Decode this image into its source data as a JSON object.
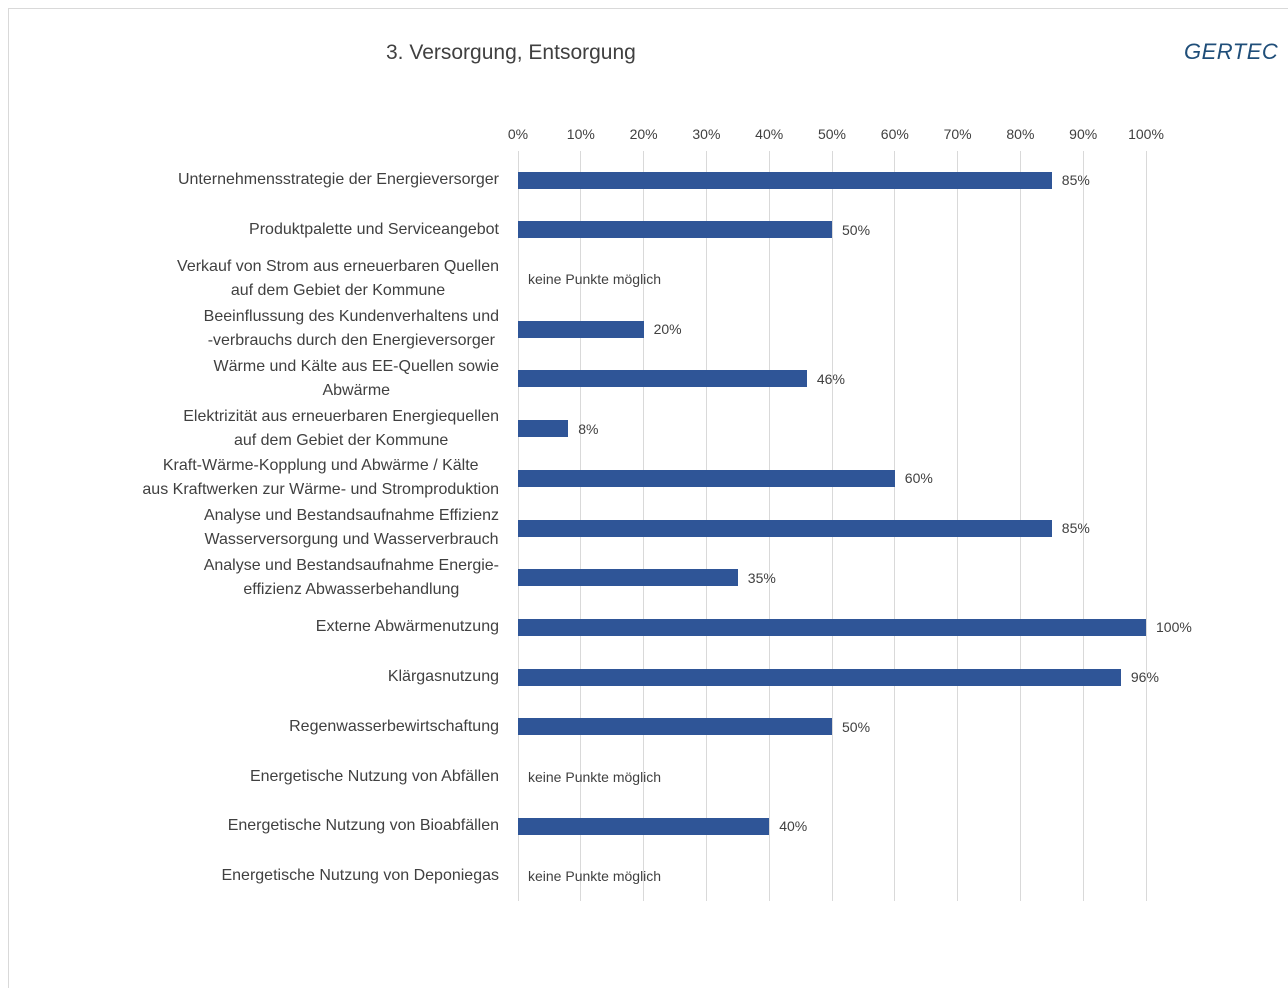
{
  "chart_data": {
    "type": "barh",
    "title": "3. Versorgung, Entsorgung",
    "logo": "GERTEC",
    "categories": [
      "Unternehmensstrategie der Energieversorger",
      "Produktpalette und Serviceangebot",
      "Verkauf von Strom aus erneuerbaren Quellen\nauf dem Gebiet der Kommune",
      "Beeinflussung des Kundenverhaltens und\n-verbrauchs durch den Energieversorger",
      "Wärme und Kälte aus EE-Quellen sowie\nAbwärme",
      "Elektrizität aus erneuerbaren Energiequellen\nauf dem Gebiet der Kommune",
      "Kraft-Wärme-Kopplung und Abwärme / Kälte\naus Kraftwerken zur Wärme- und Stromproduktion",
      "Analyse und Bestandsaufnahme Effizienz\nWasserversorgung und Wasserverbrauch",
      "Analyse und Bestandsaufnahme Energie-\neffizienz Abwasserbehandlung",
      "Externe Abwärmenutzung",
      "Klärgasnutzung",
      "Regenwasserbewirtschaftung",
      "Energetische Nutzung von Abfällen",
      "Energetische Nutzung von Bioabfällen",
      "Energetische Nutzung von Deponiegas"
    ],
    "values": [
      85,
      50,
      null,
      20,
      46,
      8,
      60,
      85,
      35,
      100,
      96,
      50,
      null,
      40,
      null
    ],
    "value_labels": [
      "85%",
      "50%",
      "keine Punkte möglich",
      "20%",
      "46%",
      "8%",
      "60%",
      "85%",
      "35%",
      "100%",
      "96%",
      "50%",
      "keine Punkte möglich",
      "40%",
      "keine Punkte möglich"
    ],
    "color": "#2f5597",
    "xlim": [
      0,
      100
    ],
    "xticks": [
      {
        "value": 0,
        "label": "0%"
      },
      {
        "value": 10,
        "label": "10%"
      },
      {
        "value": 20,
        "label": "20%"
      },
      {
        "value": 30,
        "label": "30%"
      },
      {
        "value": 40,
        "label": "40%"
      },
      {
        "value": 50,
        "label": "50%"
      },
      {
        "value": 60,
        "label": "60%"
      },
      {
        "value": 70,
        "label": "70%"
      },
      {
        "value": 80,
        "label": "80%"
      },
      {
        "value": 90,
        "label": "90%"
      },
      {
        "value": 100,
        "label": "100%"
      }
    ],
    "grid": true
  }
}
